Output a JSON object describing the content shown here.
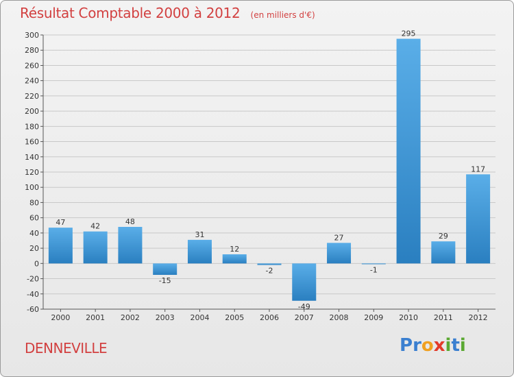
{
  "header": {
    "title": "Résultat Comptable 2000 à 2012",
    "subtitle": "(en milliers d'€)"
  },
  "footer": {
    "town": "DENNEVILLE",
    "brand": "Proxiti",
    "brand_letters": [
      {
        "char": "P",
        "color": "#3a7fd0"
      },
      {
        "char": "r",
        "color": "#3a7fd0"
      },
      {
        "char": "o",
        "color": "#f0a020"
      },
      {
        "char": "x",
        "color": "#e23a2a"
      },
      {
        "char": "i",
        "color": "#5aa832"
      },
      {
        "char": "t",
        "color": "#3a7fd0"
      },
      {
        "char": "i",
        "color": "#5aa832"
      }
    ]
  },
  "colors": {
    "title": "#d24040",
    "bar_light": "#5aaee8",
    "bar_dark": "#2a7fc0",
    "grid": "#c8c8c8",
    "text": "#333333"
  },
  "chart_data": {
    "type": "bar",
    "title": "Résultat Comptable 2000 à 2012",
    "unit": "(en milliers d'€)",
    "xlabel": "",
    "ylabel": "",
    "categories": [
      "2000",
      "2001",
      "2002",
      "2003",
      "2004",
      "2005",
      "2006",
      "2007",
      "2008",
      "2009",
      "2010",
      "2011",
      "2012"
    ],
    "values": [
      47,
      42,
      48,
      -15,
      31,
      12,
      -2,
      -49,
      27,
      -1,
      295,
      29,
      117
    ],
    "ylim": [
      -60,
      300
    ],
    "ytick_step": 20,
    "grid": true,
    "legend": "none"
  }
}
